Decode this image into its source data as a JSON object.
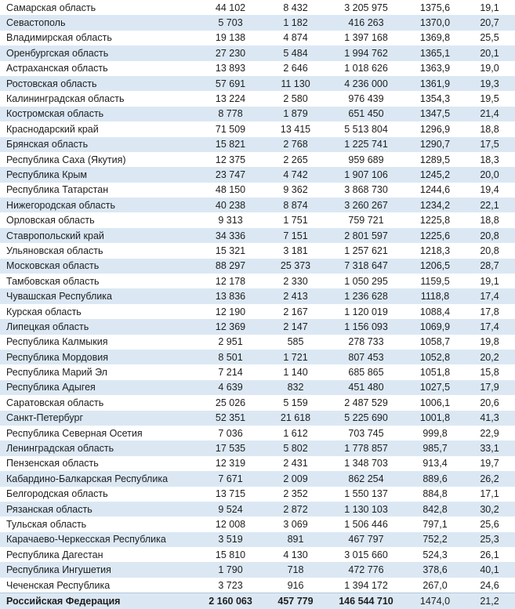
{
  "colors": {
    "stripe": "#dbe8f4",
    "text": "#1e1e1e",
    "total_top_border": "#b3c6d9"
  },
  "table": {
    "rows": [
      [
        "Самарская область",
        "44 102",
        "8 432",
        "3 205 975",
        "1375,6",
        "19,1"
      ],
      [
        "Севастополь",
        "5 703",
        "1 182",
        "416 263",
        "1370,0",
        "20,7"
      ],
      [
        "Владимирская область",
        "19 138",
        "4 874",
        "1 397 168",
        "1369,8",
        "25,5"
      ],
      [
        "Оренбургская область",
        "27 230",
        "5 484",
        "1 994 762",
        "1365,1",
        "20,1"
      ],
      [
        "Астраханская область",
        "13 893",
        "2 646",
        "1 018 626",
        "1363,9",
        "19,0"
      ],
      [
        "Ростовская область",
        "57 691",
        "11 130",
        "4 236 000",
        "1361,9",
        "19,3"
      ],
      [
        "Калининградская область",
        "13 224",
        "2 580",
        "976 439",
        "1354,3",
        "19,5"
      ],
      [
        "Костромская область",
        "8 778",
        "1 879",
        "651 450",
        "1347,5",
        "21,4"
      ],
      [
        "Краснодарский край",
        "71 509",
        "13 415",
        "5 513 804",
        "1296,9",
        "18,8"
      ],
      [
        "Брянская область",
        "15 821",
        "2 768",
        "1 225 741",
        "1290,7",
        "17,5"
      ],
      [
        "Республика Саха (Якутия)",
        "12 375",
        "2 265",
        "959 689",
        "1289,5",
        "18,3"
      ],
      [
        "Республика Крым",
        "23 747",
        "4 742",
        "1 907 106",
        "1245,2",
        "20,0"
      ],
      [
        "Республика Татарстан",
        "48 150",
        "9 362",
        "3 868 730",
        "1244,6",
        "19,4"
      ],
      [
        "Нижегородская область",
        "40 238",
        "8 874",
        "3 260 267",
        "1234,2",
        "22,1"
      ],
      [
        "Орловская область",
        "9 313",
        "1 751",
        "759 721",
        "1225,8",
        "18,8"
      ],
      [
        "Ставропольский край",
        "34 336",
        "7 151",
        "2 801 597",
        "1225,6",
        "20,8"
      ],
      [
        "Ульяновская область",
        "15 321",
        "3 181",
        "1 257 621",
        "1218,3",
        "20,8"
      ],
      [
        "Московская область",
        "88 297",
        "25 373",
        "7 318 647",
        "1206,5",
        "28,7"
      ],
      [
        "Тамбовская область",
        "12 178",
        "2 330",
        "1 050 295",
        "1159,5",
        "19,1"
      ],
      [
        "Чувашская Республика",
        "13 836",
        "2 413",
        "1 236 628",
        "1118,8",
        "17,4"
      ],
      [
        "Курская область",
        "12 190",
        "2 167",
        "1 120 019",
        "1088,4",
        "17,8"
      ],
      [
        "Липецкая область",
        "12 369",
        "2 147",
        "1 156 093",
        "1069,9",
        "17,4"
      ],
      [
        "Республика Калмыкия",
        "2 951",
        "585",
        "278 733",
        "1058,7",
        "19,8"
      ],
      [
        "Республика Мордовия",
        "8 501",
        "1 721",
        "807 453",
        "1052,8",
        "20,2"
      ],
      [
        "Республика Марий Эл",
        "7 214",
        "1 140",
        "685 865",
        "1051,8",
        "15,8"
      ],
      [
        "Республика Адыгея",
        "4 639",
        "832",
        "451 480",
        "1027,5",
        "17,9"
      ],
      [
        "Саратовская область",
        "25 026",
        "5 159",
        "2 487 529",
        "1006,1",
        "20,6"
      ],
      [
        "Санкт-Петербург",
        "52 351",
        "21 618",
        "5 225 690",
        "1001,8",
        "41,3"
      ],
      [
        "Республика Северная Осетия",
        "7 036",
        "1 612",
        "703 745",
        "999,8",
        "22,9"
      ],
      [
        "Ленинградская область",
        "17 535",
        "5 802",
        "1 778 857",
        "985,7",
        "33,1"
      ],
      [
        "Пензенская область",
        "12 319",
        "2 431",
        "1 348 703",
        "913,4",
        "19,7"
      ],
      [
        "Кабардино-Балкарская Республика",
        "7 671",
        "2 009",
        "862 254",
        "889,6",
        "26,2"
      ],
      [
        "Белгородская область",
        "13 715",
        "2 352",
        "1 550 137",
        "884,8",
        "17,1"
      ],
      [
        "Рязанская область",
        "9 524",
        "2 872",
        "1 130 103",
        "842,8",
        "30,2"
      ],
      [
        "Тульская область",
        "12 008",
        "3 069",
        "1 506 446",
        "797,1",
        "25,6"
      ],
      [
        "Карачаево-Черкесская Республика",
        "3 519",
        "891",
        "467 797",
        "752,2",
        "25,3"
      ],
      [
        "Республика Дагестан",
        "15 810",
        "4 130",
        "3 015 660",
        "524,3",
        "26,1"
      ],
      [
        "Республика Ингушетия",
        "1 790",
        "718",
        "472 776",
        "378,6",
        "40,1"
      ],
      [
        "Чеченская Республика",
        "3 723",
        "916",
        "1 394 172",
        "267,0",
        "24,6"
      ]
    ],
    "total_row": [
      "Российская Федерация",
      "2 160 063",
      "457 779",
      "146 544 710",
      "1474,0",
      "21,2"
    ],
    "total_bold_columns": 4
  }
}
